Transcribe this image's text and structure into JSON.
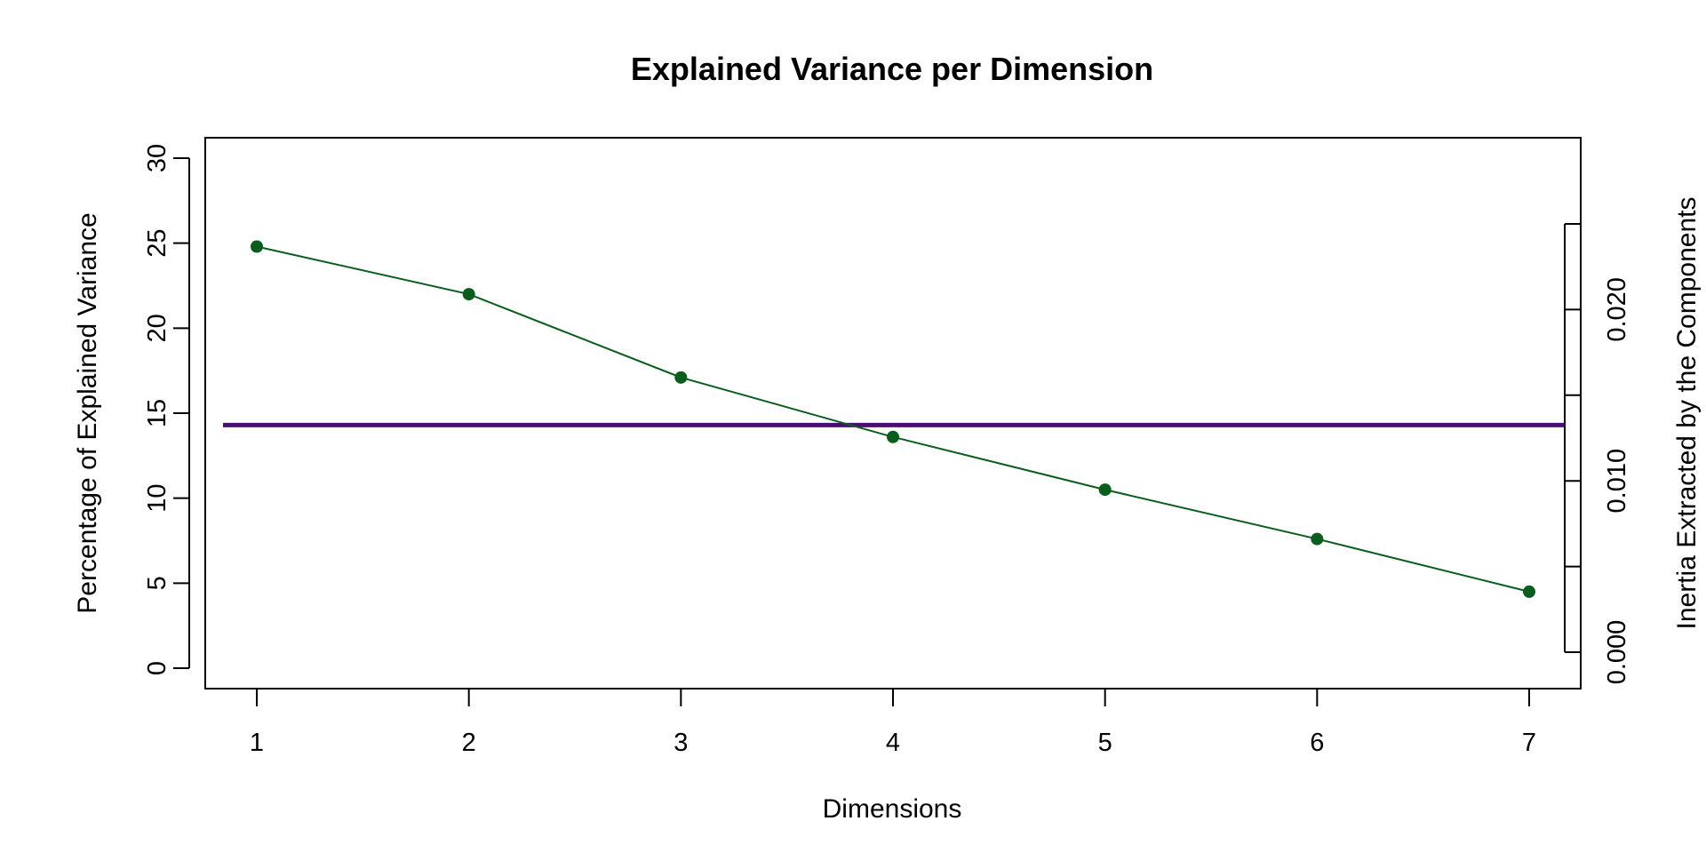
{
  "chart_data": {
    "type": "line",
    "title": "Explained Variance per Dimension",
    "xlabel": "Dimensions",
    "ylabel": "Percentage of Explained Variance",
    "y2label": "Inertia Extracted by the Components",
    "x": [
      1,
      2,
      3,
      4,
      5,
      6,
      7
    ],
    "series": [
      {
        "values": [
          24.8,
          22.0,
          17.1,
          13.6,
          10.5,
          7.6,
          4.5
        ],
        "color": "#0b5d1e"
      }
    ],
    "reference_line": {
      "y": 14.3,
      "color": "#4b0d6e"
    },
    "ylim": [
      0,
      30
    ],
    "yticks": [
      0,
      5,
      10,
      15,
      20,
      25,
      30
    ],
    "xticks": [
      1,
      2,
      3,
      4,
      5,
      6,
      7
    ],
    "y2lim": [
      0,
      0.025
    ],
    "y2ticks": [
      0.0,
      0.005,
      0.01,
      0.015,
      0.02,
      0.025
    ],
    "y2ticklabels": [
      "0.000",
      "0.010",
      "0.020"
    ],
    "grid": false,
    "legend": "none"
  }
}
